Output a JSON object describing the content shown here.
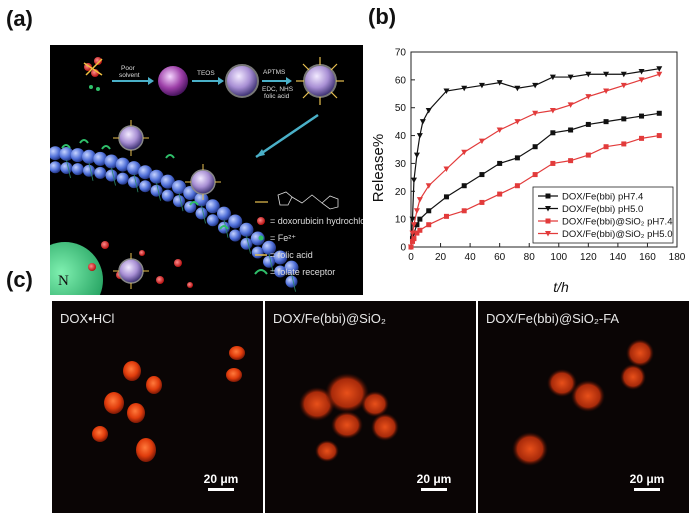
{
  "panels": {
    "a": "(a)",
    "b": "(b)",
    "c": "(c)"
  },
  "schematic": {
    "step1": [
      "Poor",
      "solvent"
    ],
    "step2": "TEOS",
    "step3": [
      "APTMS",
      "EDC, NHS",
      "folic acid"
    ],
    "nucleus": "N",
    "legend": [
      {
        "icon": "linker-molecule-icon",
        "text": ""
      },
      {
        "icon": "red-dot-icon",
        "text": "= doxorubicin hydrochloride"
      },
      {
        "icon": "green-dot-icon",
        "text": "= Fe²⁺"
      },
      {
        "icon": "folic-acid-icon",
        "text": "= folic acid"
      },
      {
        "icon": "folate-receptor-icon",
        "text": "= folate receptor"
      }
    ],
    "colors": {
      "background": "#000000",
      "membrane": "#4f6fd8",
      "nanoparticle": "#a88fd4",
      "drug": "#d62020",
      "fe": "#2fbf6a",
      "receptor": "#2fbf6a"
    }
  },
  "chart_data": {
    "type": "line",
    "xlabel": "t/h",
    "ylabel": "Release%",
    "xlim": [
      0,
      180
    ],
    "ylim": [
      0,
      70
    ],
    "xticks": [
      0,
      20,
      40,
      60,
      80,
      100,
      120,
      140,
      160,
      180
    ],
    "yticks": [
      0,
      10,
      20,
      30,
      40,
      50,
      60,
      70
    ],
    "legend_position": "bottom-right",
    "series": [
      {
        "name": "DOX/Fe(bbi) pH7.4",
        "color": "#111111",
        "marker": "square",
        "x": [
          0,
          1,
          2,
          4,
          6,
          12,
          24,
          36,
          48,
          60,
          72,
          84,
          96,
          108,
          120,
          132,
          144,
          156,
          168
        ],
        "y": [
          0,
          3,
          5,
          8,
          10,
          13,
          18,
          22,
          26,
          30,
          32,
          36,
          41,
          42,
          44,
          45,
          46,
          47,
          48
        ]
      },
      {
        "name": "DOX/Fe(bbi) pH5.0",
        "color": "#111111",
        "marker": "triangle-down",
        "x": [
          0,
          1,
          2,
          4,
          6,
          8,
          12,
          24,
          36,
          48,
          60,
          72,
          84,
          96,
          108,
          120,
          132,
          144,
          156,
          168
        ],
        "y": [
          0,
          10,
          24,
          33,
          40,
          45,
          49,
          56,
          57,
          58,
          59,
          57,
          58,
          61,
          61,
          62,
          62,
          62,
          63,
          64
        ]
      },
      {
        "name": "DOX/Fe(bbi)@SiO₂ pH7.4",
        "color": "#e23b3b",
        "marker": "square",
        "x": [
          0,
          1,
          2,
          4,
          6,
          12,
          24,
          36,
          48,
          60,
          72,
          84,
          96,
          108,
          120,
          132,
          144,
          156,
          168
        ],
        "y": [
          0,
          2,
          3,
          5,
          6,
          8,
          11,
          13,
          16,
          19,
          22,
          26,
          30,
          31,
          33,
          36,
          37,
          39,
          40
        ]
      },
      {
        "name": "DOX/Fe(bbi)@SiO₂ pH5.0",
        "color": "#e23b3b",
        "marker": "triangle-down",
        "x": [
          0,
          1,
          2,
          4,
          6,
          12,
          24,
          36,
          48,
          60,
          72,
          84,
          96,
          108,
          120,
          132,
          144,
          156,
          168
        ],
        "y": [
          0,
          5,
          8,
          13,
          17,
          22,
          28,
          34,
          38,
          42,
          45,
          48,
          49,
          51,
          54,
          56,
          58,
          60,
          62
        ]
      }
    ]
  },
  "micrographs": [
    {
      "title": "DOX•HCl",
      "scale": "20 μm"
    },
    {
      "title": "DOX/Fe(bbi)@SiO₂",
      "scale": "20 μm"
    },
    {
      "title": "DOX/Fe(bbi)@SiO₂-FA",
      "scale": "20 μm"
    }
  ]
}
